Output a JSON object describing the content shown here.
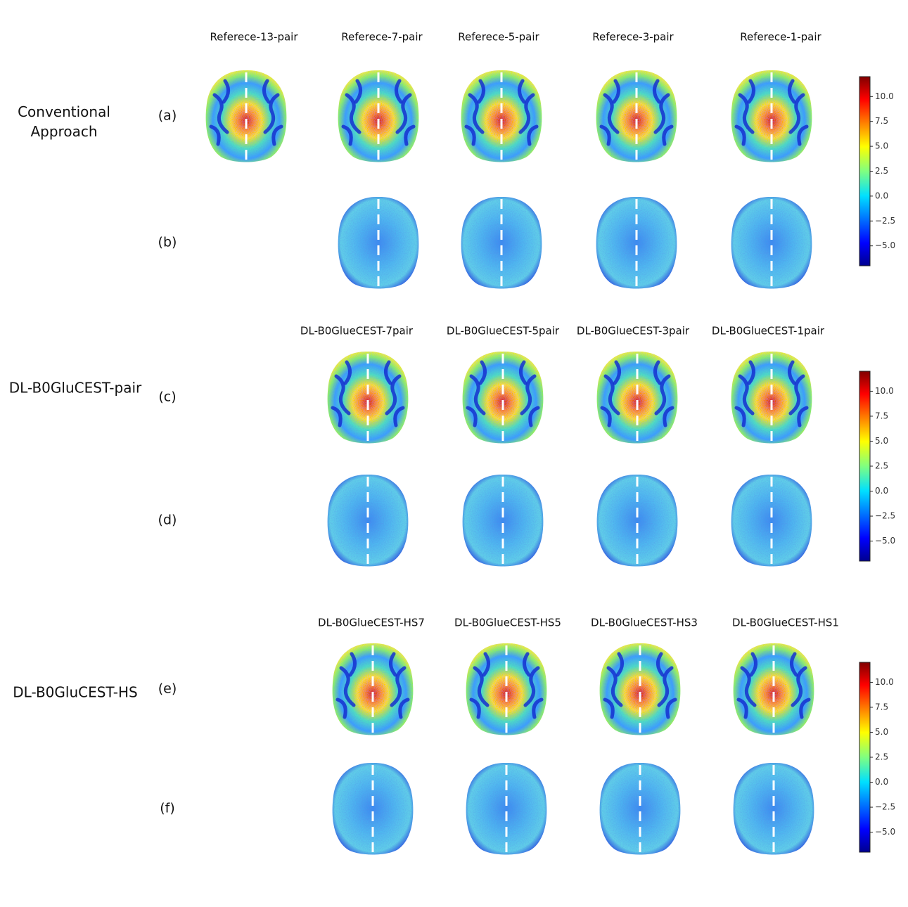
{
  "groups": [
    {
      "label": "Conventional Approach",
      "columns": [
        "Referece-13-pair",
        "Referece-7-pair",
        "Referece-5-pair",
        "Referece-3-pair",
        "Referece-1-pair"
      ],
      "rows": [
        "(a)",
        "(b)"
      ]
    },
    {
      "label": "DL-B0GluCEST-pair",
      "columns": [
        "DL-B0GlueCEST-7pair",
        "DL-B0GlueCEST-5pair",
        "DL-B0GlueCEST-3pair",
        "DL-B0GlueCEST-1pair"
      ],
      "rows": [
        "(c)",
        "(d)"
      ]
    },
    {
      "label": "DL-B0GluCEST-HS",
      "columns": [
        "DL-B0GlueCEST-HS7",
        "DL-B0GlueCEST-HS5",
        "DL-B0GlueCEST-HS3",
        "DL-B0GlueCEST-HS1"
      ],
      "rows": [
        "(e)",
        "(f)"
      ]
    }
  ],
  "colorbar": {
    "ylim": [
      -7,
      12
    ],
    "yticks": [
      {
        "value": 10,
        "label": "10.0"
      },
      {
        "value": 7.5,
        "label": "7.5"
      },
      {
        "value": 5,
        "label": "5.0"
      },
      {
        "value": 2.5,
        "label": "2.5"
      },
      {
        "value": 0,
        "label": "0.0"
      },
      {
        "value": -2.5,
        "label": "−2.5"
      },
      {
        "value": -5,
        "label": "−5.0"
      }
    ]
  }
}
